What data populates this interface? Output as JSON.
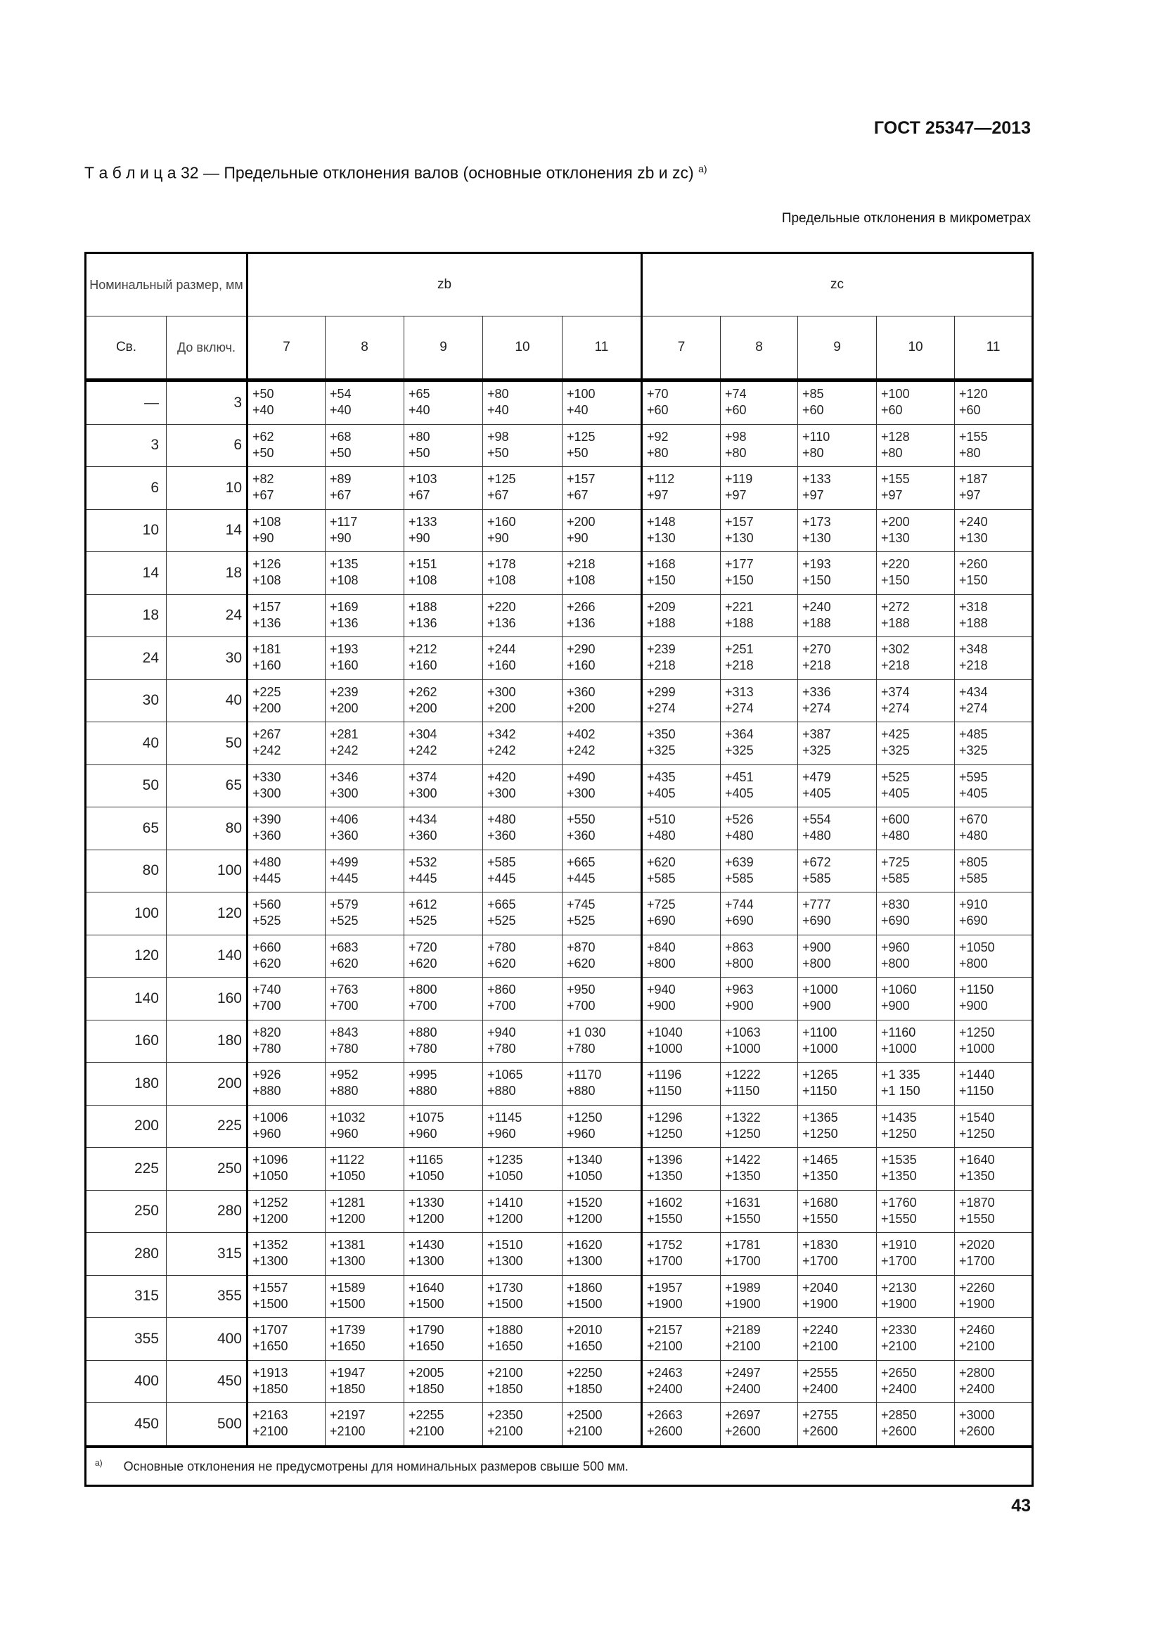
{
  "header": {
    "standard": "ГОСТ 25347—2013"
  },
  "title": {
    "text": "Т а б л и ц а  32 — Предельные отклонения валов (основные отклонения zb и zc)",
    "footnote_mark": "а)"
  },
  "units_note": "Предельные отклонения в микрометрах",
  "table": {
    "nominal_header": "Номинальный размер, мм",
    "from_header": "Св.",
    "to_header": "До включ.",
    "groups": [
      "zb",
      "zc"
    ],
    "grades": [
      "7",
      "8",
      "9",
      "10",
      "11"
    ],
    "rows": [
      {
        "from": "—",
        "to": "3",
        "zb": [
          [
            "+50",
            "+40"
          ],
          [
            "+54",
            "+40"
          ],
          [
            "+65",
            "+40"
          ],
          [
            "+80",
            "+40"
          ],
          [
            "+100",
            "+40"
          ]
        ],
        "zc": [
          [
            "+70",
            "+60"
          ],
          [
            "+74",
            "+60"
          ],
          [
            "+85",
            "+60"
          ],
          [
            "+100",
            "+60"
          ],
          [
            "+120",
            "+60"
          ]
        ]
      },
      {
        "from": "3",
        "to": "6",
        "zb": [
          [
            "+62",
            "+50"
          ],
          [
            "+68",
            "+50"
          ],
          [
            "+80",
            "+50"
          ],
          [
            "+98",
            "+50"
          ],
          [
            "+125",
            "+50"
          ]
        ],
        "zc": [
          [
            "+92",
            "+80"
          ],
          [
            "+98",
            "+80"
          ],
          [
            "+110",
            "+80"
          ],
          [
            "+128",
            "+80"
          ],
          [
            "+155",
            "+80"
          ]
        ]
      },
      {
        "from": "6",
        "to": "10",
        "zb": [
          [
            "+82",
            "+67"
          ],
          [
            "+89",
            "+67"
          ],
          [
            "+103",
            "+67"
          ],
          [
            "+125",
            "+67"
          ],
          [
            "+157",
            "+67"
          ]
        ],
        "zc": [
          [
            "+112",
            "+97"
          ],
          [
            "+119",
            "+97"
          ],
          [
            "+133",
            "+97"
          ],
          [
            "+155",
            "+97"
          ],
          [
            "+187",
            "+97"
          ]
        ]
      },
      {
        "from": "10",
        "to": "14",
        "zb": [
          [
            "+108",
            "+90"
          ],
          [
            "+117",
            "+90"
          ],
          [
            "+133",
            "+90"
          ],
          [
            "+160",
            "+90"
          ],
          [
            "+200",
            "+90"
          ]
        ],
        "zc": [
          [
            "+148",
            "+130"
          ],
          [
            "+157",
            "+130"
          ],
          [
            "+173",
            "+130"
          ],
          [
            "+200",
            "+130"
          ],
          [
            "+240",
            "+130"
          ]
        ]
      },
      {
        "from": "14",
        "to": "18",
        "zb": [
          [
            "+126",
            "+108"
          ],
          [
            "+135",
            "+108"
          ],
          [
            "+151",
            "+108"
          ],
          [
            "+178",
            "+108"
          ],
          [
            "+218",
            "+108"
          ]
        ],
        "zc": [
          [
            "+168",
            "+150"
          ],
          [
            "+177",
            "+150"
          ],
          [
            "+193",
            "+150"
          ],
          [
            "+220",
            "+150"
          ],
          [
            "+260",
            "+150"
          ]
        ]
      },
      {
        "from": "18",
        "to": "24",
        "zb": [
          [
            "+157",
            "+136"
          ],
          [
            "+169",
            "+136"
          ],
          [
            "+188",
            "+136"
          ],
          [
            "+220",
            "+136"
          ],
          [
            "+266",
            "+136"
          ]
        ],
        "zc": [
          [
            "+209",
            "+188"
          ],
          [
            "+221",
            "+188"
          ],
          [
            "+240",
            "+188"
          ],
          [
            "+272",
            "+188"
          ],
          [
            "+318",
            "+188"
          ]
        ]
      },
      {
        "from": "24",
        "to": "30",
        "zb": [
          [
            "+181",
            "+160"
          ],
          [
            "+193",
            "+160"
          ],
          [
            "+212",
            "+160"
          ],
          [
            "+244",
            "+160"
          ],
          [
            "+290",
            "+160"
          ]
        ],
        "zc": [
          [
            "+239",
            "+218"
          ],
          [
            "+251",
            "+218"
          ],
          [
            "+270",
            "+218"
          ],
          [
            "+302",
            "+218"
          ],
          [
            "+348",
            "+218"
          ]
        ]
      },
      {
        "from": "30",
        "to": "40",
        "zb": [
          [
            "+225",
            "+200"
          ],
          [
            "+239",
            "+200"
          ],
          [
            "+262",
            "+200"
          ],
          [
            "+300",
            "+200"
          ],
          [
            "+360",
            "+200"
          ]
        ],
        "zc": [
          [
            "+299",
            "+274"
          ],
          [
            "+313",
            "+274"
          ],
          [
            "+336",
            "+274"
          ],
          [
            "+374",
            "+274"
          ],
          [
            "+434",
            "+274"
          ]
        ]
      },
      {
        "from": "40",
        "to": "50",
        "zb": [
          [
            "+267",
            "+242"
          ],
          [
            "+281",
            "+242"
          ],
          [
            "+304",
            "+242"
          ],
          [
            "+342",
            "+242"
          ],
          [
            "+402",
            "+242"
          ]
        ],
        "zc": [
          [
            "+350",
            "+325"
          ],
          [
            "+364",
            "+325"
          ],
          [
            "+387",
            "+325"
          ],
          [
            "+425",
            "+325"
          ],
          [
            "+485",
            "+325"
          ]
        ]
      },
      {
        "from": "50",
        "to": "65",
        "zb": [
          [
            "+330",
            "+300"
          ],
          [
            "+346",
            "+300"
          ],
          [
            "+374",
            "+300"
          ],
          [
            "+420",
            "+300"
          ],
          [
            "+490",
            "+300"
          ]
        ],
        "zc": [
          [
            "+435",
            "+405"
          ],
          [
            "+451",
            "+405"
          ],
          [
            "+479",
            "+405"
          ],
          [
            "+525",
            "+405"
          ],
          [
            "+595",
            "+405"
          ]
        ]
      },
      {
        "from": "65",
        "to": "80",
        "zb": [
          [
            "+390",
            "+360"
          ],
          [
            "+406",
            "+360"
          ],
          [
            "+434",
            "+360"
          ],
          [
            "+480",
            "+360"
          ],
          [
            "+550",
            "+360"
          ]
        ],
        "zc": [
          [
            "+510",
            "+480"
          ],
          [
            "+526",
            "+480"
          ],
          [
            "+554",
            "+480"
          ],
          [
            "+600",
            "+480"
          ],
          [
            "+670",
            "+480"
          ]
        ]
      },
      {
        "from": "80",
        "to": "100",
        "zb": [
          [
            "+480",
            "+445"
          ],
          [
            "+499",
            "+445"
          ],
          [
            "+532",
            "+445"
          ],
          [
            "+585",
            "+445"
          ],
          [
            "+665",
            "+445"
          ]
        ],
        "zc": [
          [
            "+620",
            "+585"
          ],
          [
            "+639",
            "+585"
          ],
          [
            "+672",
            "+585"
          ],
          [
            "+725",
            "+585"
          ],
          [
            "+805",
            "+585"
          ]
        ]
      },
      {
        "from": "100",
        "to": "120",
        "zb": [
          [
            "+560",
            "+525"
          ],
          [
            "+579",
            "+525"
          ],
          [
            "+612",
            "+525"
          ],
          [
            "+665",
            "+525"
          ],
          [
            "+745",
            "+525"
          ]
        ],
        "zc": [
          [
            "+725",
            "+690"
          ],
          [
            "+744",
            "+690"
          ],
          [
            "+777",
            "+690"
          ],
          [
            "+830",
            "+690"
          ],
          [
            "+910",
            "+690"
          ]
        ]
      },
      {
        "from": "120",
        "to": "140",
        "zb": [
          [
            "+660",
            "+620"
          ],
          [
            "+683",
            "+620"
          ],
          [
            "+720",
            "+620"
          ],
          [
            "+780",
            "+620"
          ],
          [
            "+870",
            "+620"
          ]
        ],
        "zc": [
          [
            "+840",
            "+800"
          ],
          [
            "+863",
            "+800"
          ],
          [
            "+900",
            "+800"
          ],
          [
            "+960",
            "+800"
          ],
          [
            "+1050",
            "+800"
          ]
        ]
      },
      {
        "from": "140",
        "to": "160",
        "zb": [
          [
            "+740",
            "+700"
          ],
          [
            "+763",
            "+700"
          ],
          [
            "+800",
            "+700"
          ],
          [
            "+860",
            "+700"
          ],
          [
            "+950",
            "+700"
          ]
        ],
        "zc": [
          [
            "+940",
            "+900"
          ],
          [
            "+963",
            "+900"
          ],
          [
            "+1000",
            "+900"
          ],
          [
            "+1060",
            "+900"
          ],
          [
            "+1150",
            "+900"
          ]
        ]
      },
      {
        "from": "160",
        "to": "180",
        "zb": [
          [
            "+820",
            "+780"
          ],
          [
            "+843",
            "+780"
          ],
          [
            "+880",
            "+780"
          ],
          [
            "+940",
            "+780"
          ],
          [
            "+1 030",
            "+780"
          ]
        ],
        "zc": [
          [
            "+1040",
            "+1000"
          ],
          [
            "+1063",
            "+1000"
          ],
          [
            "+1100",
            "+1000"
          ],
          [
            "+1160",
            "+1000"
          ],
          [
            "+1250",
            "+1000"
          ]
        ]
      },
      {
        "from": "180",
        "to": "200",
        "zb": [
          [
            "+926",
            "+880"
          ],
          [
            "+952",
            "+880"
          ],
          [
            "+995",
            "+880"
          ],
          [
            "+1065",
            "+880"
          ],
          [
            "+1170",
            "+880"
          ]
        ],
        "zc": [
          [
            "+1196",
            "+1150"
          ],
          [
            "+1222",
            "+1150"
          ],
          [
            "+1265",
            "+1150"
          ],
          [
            "+1 335",
            "+1 150"
          ],
          [
            "+1440",
            "+1150"
          ]
        ]
      },
      {
        "from": "200",
        "to": "225",
        "zb": [
          [
            "+1006",
            "+960"
          ],
          [
            "+1032",
            "+960"
          ],
          [
            "+1075",
            "+960"
          ],
          [
            "+1145",
            "+960"
          ],
          [
            "+1250",
            "+960"
          ]
        ],
        "zc": [
          [
            "+1296",
            "+1250"
          ],
          [
            "+1322",
            "+1250"
          ],
          [
            "+1365",
            "+1250"
          ],
          [
            "+1435",
            "+1250"
          ],
          [
            "+1540",
            "+1250"
          ]
        ]
      },
      {
        "from": "225",
        "to": "250",
        "zb": [
          [
            "+1096",
            "+1050"
          ],
          [
            "+1122",
            "+1050"
          ],
          [
            "+1165",
            "+1050"
          ],
          [
            "+1235",
            "+1050"
          ],
          [
            "+1340",
            "+1050"
          ]
        ],
        "zc": [
          [
            "+1396",
            "+1350"
          ],
          [
            "+1422",
            "+1350"
          ],
          [
            "+1465",
            "+1350"
          ],
          [
            "+1535",
            "+1350"
          ],
          [
            "+1640",
            "+1350"
          ]
        ]
      },
      {
        "from": "250",
        "to": "280",
        "zb": [
          [
            "+1252",
            "+1200"
          ],
          [
            "+1281",
            "+1200"
          ],
          [
            "+1330",
            "+1200"
          ],
          [
            "+1410",
            "+1200"
          ],
          [
            "+1520",
            "+1200"
          ]
        ],
        "zc": [
          [
            "+1602",
            "+1550"
          ],
          [
            "+1631",
            "+1550"
          ],
          [
            "+1680",
            "+1550"
          ],
          [
            "+1760",
            "+1550"
          ],
          [
            "+1870",
            "+1550"
          ]
        ]
      },
      {
        "from": "280",
        "to": "315",
        "zb": [
          [
            "+1352",
            "+1300"
          ],
          [
            "+1381",
            "+1300"
          ],
          [
            "+1430",
            "+1300"
          ],
          [
            "+1510",
            "+1300"
          ],
          [
            "+1620",
            "+1300"
          ]
        ],
        "zc": [
          [
            "+1752",
            "+1700"
          ],
          [
            "+1781",
            "+1700"
          ],
          [
            "+1830",
            "+1700"
          ],
          [
            "+1910",
            "+1700"
          ],
          [
            "+2020",
            "+1700"
          ]
        ]
      },
      {
        "from": "315",
        "to": "355",
        "zb": [
          [
            "+1557",
            "+1500"
          ],
          [
            "+1589",
            "+1500"
          ],
          [
            "+1640",
            "+1500"
          ],
          [
            "+1730",
            "+1500"
          ],
          [
            "+1860",
            "+1500"
          ]
        ],
        "zc": [
          [
            "+1957",
            "+1900"
          ],
          [
            "+1989",
            "+1900"
          ],
          [
            "+2040",
            "+1900"
          ],
          [
            "+2130",
            "+1900"
          ],
          [
            "+2260",
            "+1900"
          ]
        ]
      },
      {
        "from": "355",
        "to": "400",
        "zb": [
          [
            "+1707",
            "+1650"
          ],
          [
            "+1739",
            "+1650"
          ],
          [
            "+1790",
            "+1650"
          ],
          [
            "+1880",
            "+1650"
          ],
          [
            "+2010",
            "+1650"
          ]
        ],
        "zc": [
          [
            "+2157",
            "+2100"
          ],
          [
            "+2189",
            "+2100"
          ],
          [
            "+2240",
            "+2100"
          ],
          [
            "+2330",
            "+2100"
          ],
          [
            "+2460",
            "+2100"
          ]
        ]
      },
      {
        "from": "400",
        "to": "450",
        "zb": [
          [
            "+1913",
            "+1850"
          ],
          [
            "+1947",
            "+1850"
          ],
          [
            "+2005",
            "+1850"
          ],
          [
            "+2100",
            "+1850"
          ],
          [
            "+2250",
            "+1850"
          ]
        ],
        "zc": [
          [
            "+2463",
            "+2400"
          ],
          [
            "+2497",
            "+2400"
          ],
          [
            "+2555",
            "+2400"
          ],
          [
            "+2650",
            "+2400"
          ],
          [
            "+2800",
            "+2400"
          ]
        ]
      },
      {
        "from": "450",
        "to": "500",
        "zb": [
          [
            "+2163",
            "+2100"
          ],
          [
            "+2197",
            "+2100"
          ],
          [
            "+2255",
            "+2100"
          ],
          [
            "+2350",
            "+2100"
          ],
          [
            "+2500",
            "+2100"
          ]
        ],
        "zc": [
          [
            "+2663",
            "+2600"
          ],
          [
            "+2697",
            "+2600"
          ],
          [
            "+2755",
            "+2600"
          ],
          [
            "+2850",
            "+2600"
          ],
          [
            "+3000",
            "+2600"
          ]
        ]
      }
    ],
    "footnote": {
      "mark": "а)",
      "text": "Основные отклонения не предусмотрены для номинальных размеров  свыше 500 мм."
    }
  },
  "page_number": "43"
}
